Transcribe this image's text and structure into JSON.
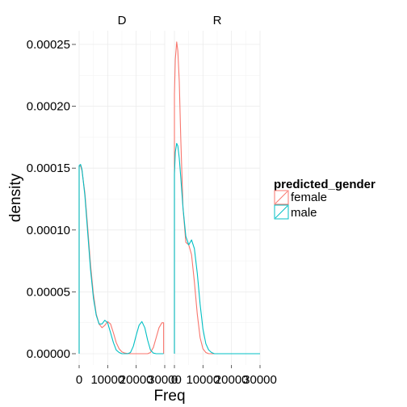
{
  "chart_data": {
    "type": "density",
    "facets": [
      "D",
      "R"
    ],
    "xlabel": "Freq",
    "ylabel": "density",
    "xlim": [
      0,
      30000
    ],
    "ylim": [
      0,
      0.00026
    ],
    "x_ticks": [
      0,
      10000,
      20000,
      30000
    ],
    "x_tick_labels": [
      "0",
      "10000",
      "20000",
      "30000"
    ],
    "y_ticks": [
      0,
      5e-05,
      0.0001,
      0.00015,
      0.0002,
      0.00025
    ],
    "y_tick_labels": [
      "0.00000",
      "0.00005",
      "0.00010",
      "0.00015",
      "0.00020",
      "0.00025"
    ],
    "legend": {
      "title": "predicted_gender",
      "placement": "right",
      "entries": [
        "female",
        "male"
      ]
    },
    "colors": {
      "female": "#F8766D",
      "male": "#00BFC4"
    },
    "grid": true,
    "series": [
      {
        "facet": "D",
        "name": "female",
        "x": [
          0,
          500,
          1000,
          2000,
          3000,
          4000,
          5000,
          6000,
          7000,
          8000,
          9000,
          10000,
          11000,
          12000,
          13000,
          14000,
          15000,
          16000,
          17000,
          18000,
          19000,
          20000,
          21000,
          22000,
          23000,
          24000,
          25000,
          26000,
          27000,
          28000,
          29000,
          29600
        ],
        "y": [
          0.000151,
          0.000152,
          0.000148,
          0.00013,
          0.000102,
          7.2e-05,
          4.8e-05,
          3.2e-05,
          2.4e-05,
          2.1e-05,
          2.3e-05,
          2.6e-05,
          2.4e-05,
          1.7e-05,
          9e-06,
          4e-06,
          1.5e-06,
          5e-07,
          1e-07,
          0,
          0,
          0,
          0,
          0,
          0,
          0,
          1e-06,
          5e-06,
          1.3e-05,
          2.1e-05,
          2.5e-05,
          2.5e-05
        ]
      },
      {
        "facet": "D",
        "name": "male",
        "x": [
          0,
          500,
          1000,
          2000,
          3000,
          4000,
          5000,
          6000,
          7000,
          8000,
          9000,
          10000,
          11000,
          12000,
          13000,
          14000,
          15000,
          16000,
          17000,
          18000,
          19000,
          20000,
          21000,
          22000,
          23000,
          24000,
          25000,
          26000,
          27000,
          28000,
          29000,
          29600
        ],
        "y": [
          0.000152,
          0.000153,
          0.000149,
          0.000128,
          9.8e-05,
          6.8e-05,
          4.5e-05,
          3.1e-05,
          2.4e-05,
          2.4e-05,
          2.7e-05,
          2.5e-05,
          1.7e-05,
          9e-06,
          3e-06,
          1e-06,
          0,
          0,
          0,
          1e-06,
          6e-06,
          1.5e-05,
          2.3e-05,
          2.6e-05,
          2.1e-05,
          1.1e-05,
          3e-06,
          5e-07,
          0,
          0,
          0,
          0
        ]
      },
      {
        "facet": "R",
        "name": "female",
        "x": [
          0,
          300,
          800,
          1200,
          1700,
          2200,
          3000,
          4000,
          5000,
          6000,
          7000,
          8000,
          9000,
          10000,
          11000,
          12000,
          13000,
          14000,
          16000,
          20000,
          25000,
          30000
        ],
        "y": [
          0.00021,
          0.000238,
          0.000252,
          0.000245,
          0.00022,
          0.000175,
          0.000118,
          9e-05,
          8.8e-05,
          8e-05,
          5.8e-05,
          3.2e-05,
          1.3e-05,
          4e-06,
          1e-06,
          0,
          0,
          0,
          0,
          0,
          0,
          0
        ]
      },
      {
        "facet": "R",
        "name": "male",
        "x": [
          0,
          300,
          800,
          1200,
          1700,
          2200,
          3000,
          4000,
          5000,
          6000,
          7000,
          8000,
          9000,
          10000,
          11000,
          12000,
          13000,
          14000,
          16000,
          20000,
          25000,
          30000
        ],
        "y": [
          0.000145,
          0.000163,
          0.00017,
          0.000168,
          0.000158,
          0.000143,
          0.000118,
          9.5e-05,
          8.8e-05,
          9.2e-05,
          8.5e-05,
          6.5e-05,
          4e-05,
          2e-05,
          8e-06,
          3e-06,
          1e-06,
          0,
          0,
          0,
          0,
          0
        ]
      }
    ]
  }
}
